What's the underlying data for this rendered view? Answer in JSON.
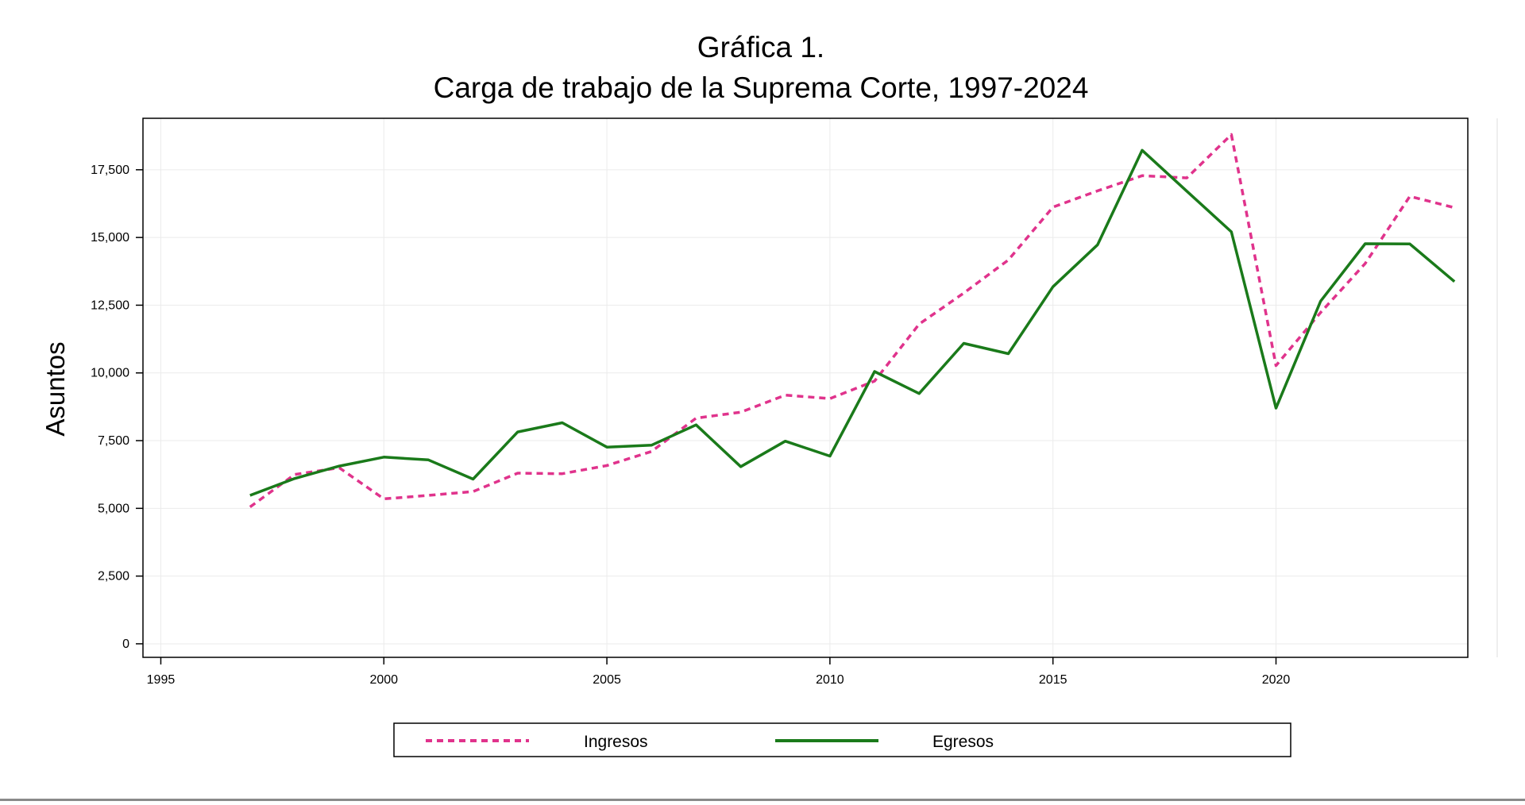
{
  "colors": {
    "ingresos": "#e0338c",
    "egresos": "#1a7a1a",
    "grid": "#ebebeb",
    "frame": "#000000"
  },
  "chart_data": {
    "type": "line",
    "title": "Gráfica 1.",
    "subtitle": "Carga de trabajo de la Suprema Corte, 1997-2024",
    "xlabel": "",
    "ylabel": "Asuntos",
    "xlim": [
      1994.6,
      2024.3
    ],
    "ylim": [
      -500,
      19400
    ],
    "x_ticks": [
      1995,
      2000,
      2005,
      2010,
      2015,
      2020
    ],
    "y_ticks": [
      0,
      2500,
      5000,
      7500,
      10000,
      12500,
      15000,
      17500
    ],
    "x_tick_labels": [
      "1995",
      "2000",
      "2005",
      "2010",
      "2015",
      "2020"
    ],
    "y_tick_labels": [
      "0",
      "2,500",
      "5,000",
      "7,500",
      "10,000",
      "12,500",
      "15,000",
      "17,500"
    ],
    "grid": true,
    "legend_position": "bottom",
    "x": [
      1997,
      1998,
      1999,
      2000,
      2001,
      2002,
      2003,
      2004,
      2005,
      2006,
      2007,
      2008,
      2009,
      2010,
      2011,
      2012,
      2013,
      2014,
      2015,
      2016,
      2017,
      2018,
      2019,
      2020,
      2021,
      2022,
      2023,
      2024
    ],
    "series": [
      {
        "name": "Ingresos",
        "style": "dashed",
        "color": "#e0338c",
        "values": [
          5050,
          6250,
          6500,
          5350,
          5480,
          5620,
          6300,
          6280,
          6580,
          7100,
          8330,
          8550,
          9180,
          9050,
          9700,
          11800,
          12950,
          14170,
          16120,
          16720,
          17280,
          17200,
          18800,
          10270,
          12230,
          14040,
          16520,
          16100
        ]
      },
      {
        "name": "Egresos",
        "style": "solid",
        "color": "#1a7a1a",
        "values": [
          5480,
          6100,
          6560,
          6890,
          6790,
          6080,
          7820,
          8160,
          7260,
          7330,
          8080,
          6540,
          7480,
          6930,
          10050,
          9240,
          11090,
          10710,
          13180,
          14730,
          18220,
          16710,
          15210,
          8700,
          12650,
          14770,
          14760,
          13370
        ]
      }
    ]
  }
}
